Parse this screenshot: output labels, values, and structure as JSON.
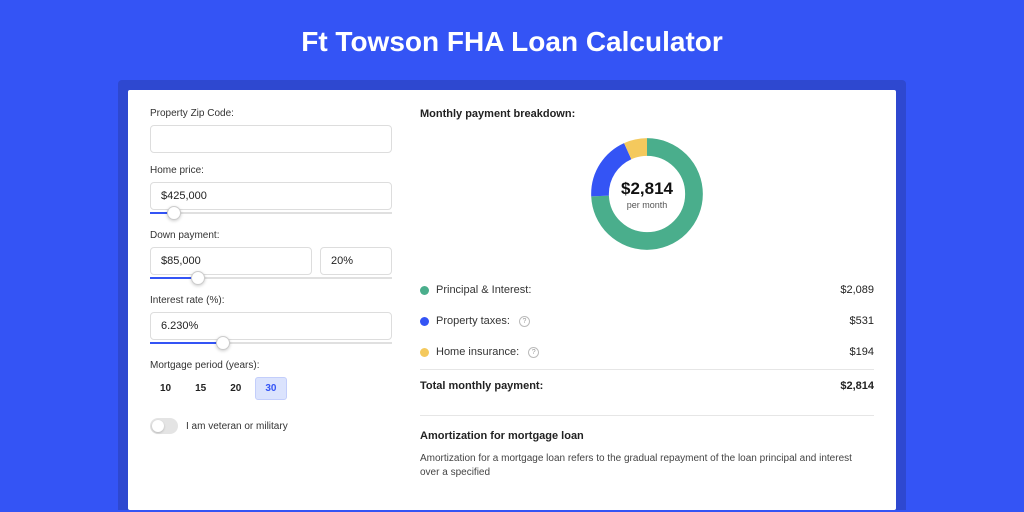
{
  "colors": {
    "page_bg": "#3454f5",
    "shadow_bg": "#2e48d0",
    "card_bg": "#ffffff",
    "accent": "#3454f5",
    "border": "#dddddd",
    "slider_track": "#e0e0e0",
    "period_active_bg": "#dbe3fd",
    "donut_green": "#4aae8c",
    "donut_blue": "#3454f5",
    "donut_yellow": "#f4c95d"
  },
  "title": "Ft Towson FHA Loan Calculator",
  "form": {
    "zip_label": "Property Zip Code:",
    "zip_value": "",
    "price_label": "Home price:",
    "price_value": "$425,000",
    "price_slider_pct": 10,
    "down_label": "Down payment:",
    "down_value": "$85,000",
    "down_pct_value": "20%",
    "down_slider_pct": 20,
    "rate_label": "Interest rate (%):",
    "rate_value": "6.230%",
    "rate_slider_pct": 30,
    "period_label": "Mortgage period (years):",
    "periods": [
      "10",
      "15",
      "20",
      "30"
    ],
    "period_active": "30",
    "veteran_label": "I am veteran or military",
    "veteran_on": false
  },
  "breakdown": {
    "title": "Monthly payment breakdown:",
    "center_amount": "$2,814",
    "center_sub": "per month",
    "donut": {
      "circumference": 100,
      "segments": [
        {
          "name": "principal_interest",
          "color": "#4aae8c",
          "pct": 74.2
        },
        {
          "name": "property_taxes",
          "color": "#3454f5",
          "pct": 18.9
        },
        {
          "name": "home_insurance",
          "color": "#f4c95d",
          "pct": 6.9
        }
      ],
      "stroke_width": 18
    },
    "items": [
      {
        "label": "Principal & Interest:",
        "value": "$2,089",
        "color": "#4aae8c",
        "info": false
      },
      {
        "label": "Property taxes:",
        "value": "$531",
        "color": "#3454f5",
        "info": true
      },
      {
        "label": "Home insurance:",
        "value": "$194",
        "color": "#f4c95d",
        "info": true
      }
    ],
    "total_label": "Total monthly payment:",
    "total_value": "$2,814"
  },
  "amort": {
    "title": "Amortization for mortgage loan",
    "text": "Amortization for a mortgage loan refers to the gradual repayment of the loan principal and interest over a specified"
  }
}
